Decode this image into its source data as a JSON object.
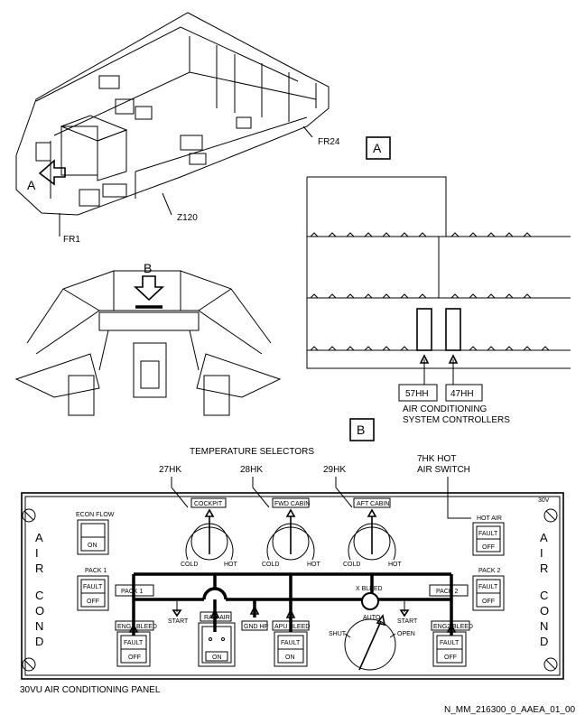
{
  "nose": {
    "view_a_label": "A",
    "fr24": "FR24",
    "fr1": "FR1",
    "z120": "Z120"
  },
  "cockpit": {
    "view_b_label": "B"
  },
  "detail_a": {
    "title": "A",
    "controller_1": "57HH",
    "controller_2": "47HH",
    "caption_line1": "AIR CONDITIONING",
    "caption_line2": "SYSTEM CONTROLLERS"
  },
  "detail_b": {
    "title": "B",
    "temperature_selectors": "TEMPERATURE SELECTORS",
    "sel_27": "27HK",
    "sel_28": "28HK",
    "sel_29": "29HK",
    "hot_air_sw_1": "7HK HOT",
    "hot_air_sw_2": "AIR SWITCH"
  },
  "panel": {
    "voltage": "30V",
    "side_text": [
      "A",
      "I",
      "R",
      "C",
      "O",
      "N",
      "D"
    ],
    "econ_flow": "ECON FLOW",
    "econ_on": "ON",
    "pack1_label": "PACK 1",
    "pack2_label": "PACK 2",
    "fault": "FAULT",
    "off": "OFF",
    "on": "ON",
    "cockpit": "COCKPIT",
    "fwd_cabin": "FWD CABIN",
    "aft_cabin": "AFT CABIN",
    "cold": "COLD",
    "hot": "HOT",
    "hot_air": "HOT AIR",
    "pack1_flag": "PACK 1",
    "pack2_flag": "PACK 2",
    "x_bleed": "X BLEED",
    "start": "START",
    "ram_air": "RAM AIR",
    "gnd_hp": "GND HP",
    "apu_bleed": "APU BLEED",
    "eng1_bleed": "ENG1 BLEED",
    "eng2_bleed": "ENG2 BLEED",
    "auto": "AUTO",
    "shut": "SHUT",
    "open": "OPEN",
    "caption": "30VU AIR CONDITIONING PANEL"
  },
  "reference": "N_MM_216300_0_AAEA_01_00"
}
